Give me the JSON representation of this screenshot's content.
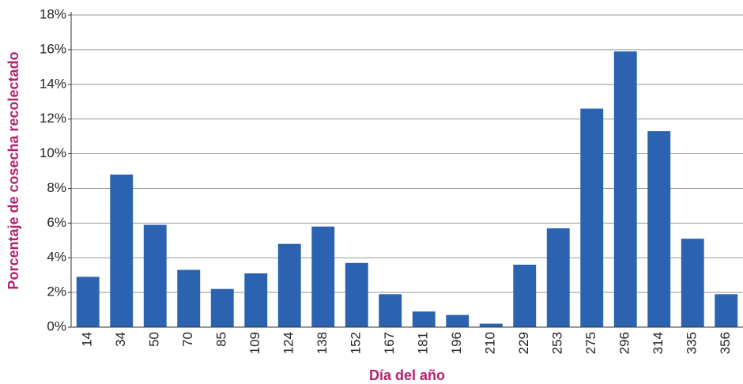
{
  "chart_data": {
    "type": "bar",
    "x_label": "Día del año",
    "y_label": "Porcentaje de cosecha recolectado",
    "categories": [
      "14",
      "34",
      "50",
      "70",
      "85",
      "109",
      "124",
      "138",
      "152",
      "167",
      "181",
      "196",
      "210",
      "229",
      "253",
      "275",
      "296",
      "314",
      "335",
      "356"
    ],
    "values": [
      2.9,
      8.8,
      5.9,
      3.3,
      2.2,
      3.1,
      4.8,
      5.8,
      3.7,
      1.9,
      0.9,
      0.7,
      0.2,
      3.6,
      5.7,
      12.6,
      15.9,
      11.3,
      5.1,
      1.9
    ],
    "color": "#2b63b0",
    "ylim": [
      0,
      18
    ],
    "yticks": [
      {
        "value": 0,
        "label": "0%"
      },
      {
        "value": 2,
        "label": "2%"
      },
      {
        "value": 4,
        "label": "4%"
      },
      {
        "value": 6,
        "label": "6%"
      },
      {
        "value": 8,
        "label": "8%"
      },
      {
        "value": 10,
        "label": "10%"
      },
      {
        "value": 12,
        "label": "12%"
      },
      {
        "value": 14,
        "label": "14%"
      },
      {
        "value": 16,
        "label": "16%"
      },
      {
        "value": 18,
        "label": "18%"
      }
    ],
    "grid": true
  }
}
